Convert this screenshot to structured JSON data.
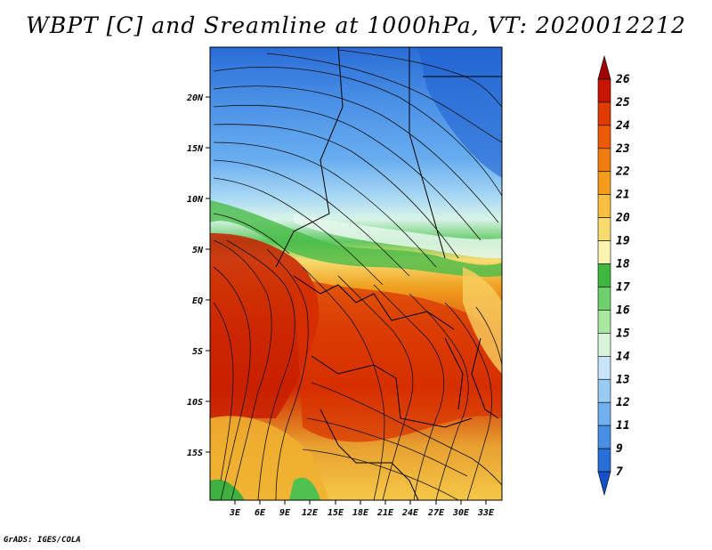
{
  "title": "WBPT [C] and Sreamline at 1000hPa, VT: 2020012212",
  "credit": "GrADS: IGES/COLA",
  "map": {
    "lat_labels": [
      "20N",
      "15N",
      "10N",
      "5N",
      "EQ",
      "5S",
      "10S",
      "15S"
    ],
    "lon_labels": [
      "3E",
      "6E",
      "9E",
      "12E",
      "15E",
      "18E",
      "21E",
      "24E",
      "27E",
      "30E",
      "33E"
    ]
  },
  "colorbar": {
    "levels": [
      "26",
      "25",
      "24",
      "23",
      "22",
      "21",
      "20",
      "19",
      "18",
      "17",
      "16",
      "15",
      "14",
      "13",
      "12",
      "11",
      "9",
      "7"
    ],
    "colors": [
      "#a00000",
      "#c81400",
      "#e03c00",
      "#ec5a08",
      "#f07c10",
      "#f59c1c",
      "#f8c040",
      "#f8dc70",
      "#fcf4b0",
      "#40b840",
      "#70d070",
      "#a8e8a0",
      "#d8f4d8",
      "#c8e4f8",
      "#98ccf4",
      "#70b0ee",
      "#4890e4",
      "#2870d8",
      "#1450c8"
    ]
  }
}
